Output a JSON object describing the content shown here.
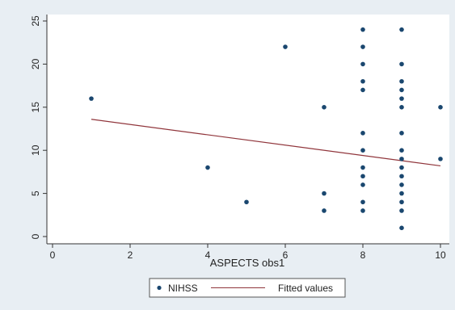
{
  "chart_data": {
    "type": "scatter",
    "title": "",
    "xlabel": "ASPECTS obs1",
    "ylabel": "",
    "xlim": [
      0,
      10
    ],
    "ylim": [
      0,
      25
    ],
    "xticks": [
      0,
      2,
      4,
      6,
      8,
      10
    ],
    "yticks": [
      0,
      5,
      10,
      15,
      20,
      25
    ],
    "grid": false,
    "legend_position": "bottom",
    "series": [
      {
        "name": "NIHSS",
        "kind": "scatter",
        "color": "#1a476f",
        "points": [
          [
            1,
            16
          ],
          [
            4,
            8
          ],
          [
            5,
            4
          ],
          [
            6,
            22
          ],
          [
            7,
            15
          ],
          [
            7,
            5
          ],
          [
            7,
            3
          ],
          [
            8,
            24
          ],
          [
            8,
            22
          ],
          [
            8,
            20
          ],
          [
            8,
            18
          ],
          [
            8,
            17
          ],
          [
            8,
            12
          ],
          [
            8,
            10
          ],
          [
            8,
            8
          ],
          [
            8,
            7
          ],
          [
            8,
            6
          ],
          [
            8,
            4
          ],
          [
            8,
            3
          ],
          [
            9,
            24
          ],
          [
            9,
            20
          ],
          [
            9,
            18
          ],
          [
            9,
            17
          ],
          [
            9,
            16
          ],
          [
            9,
            15
          ],
          [
            9,
            12
          ],
          [
            9,
            10
          ],
          [
            9,
            9
          ],
          [
            9,
            8
          ],
          [
            9,
            7
          ],
          [
            9,
            6
          ],
          [
            9,
            5
          ],
          [
            9,
            4
          ],
          [
            9,
            3
          ],
          [
            9,
            1
          ],
          [
            10,
            15
          ],
          [
            10,
            9
          ]
        ]
      },
      {
        "name": "Fitted values",
        "kind": "line",
        "color": "#90353b",
        "points": [
          [
            1,
            13.6
          ],
          [
            10,
            8.2
          ]
        ]
      }
    ]
  }
}
